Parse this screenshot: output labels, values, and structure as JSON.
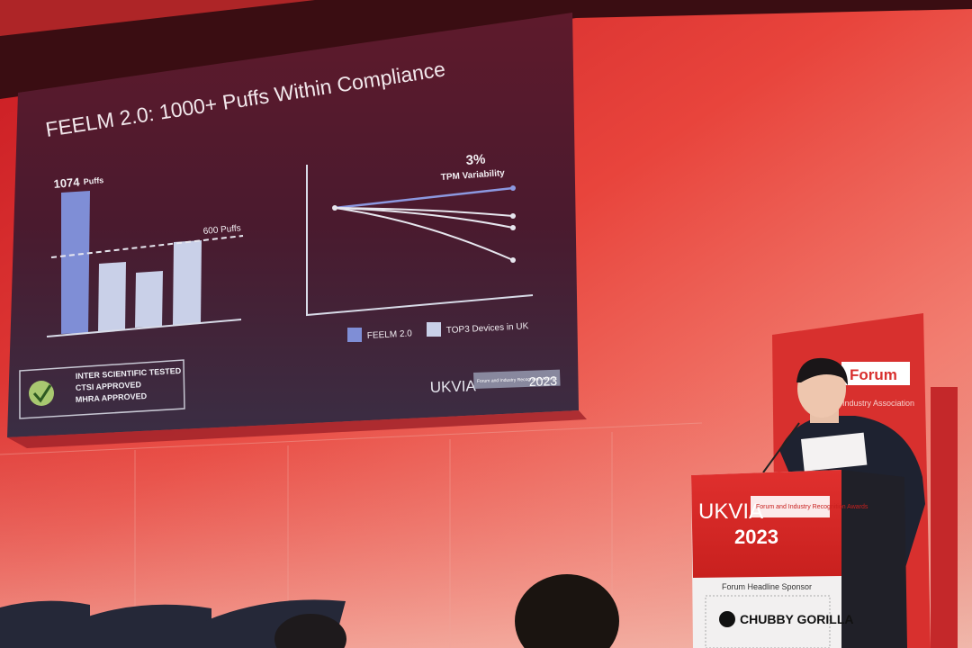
{
  "slide": {
    "title": "FEELM 2.0: 1000+ Puffs Within Compliance",
    "bar_label": "1074",
    "bar_label_unit": "Puffs",
    "threshold_label": "600 Puffs",
    "variability_value": "3%",
    "variability_label": "TPM Variability",
    "legend": [
      "FEELM 2.0",
      "TOP3 Devices in UK"
    ],
    "badges": [
      "INTER SCIENTIFIC TESTED",
      "CTSI APPROVED",
      "MHRA APPROVED"
    ],
    "logo": "UKVIA",
    "logo_caption": "Forum and Industry Recognition Awards",
    "logo_year": "2023"
  },
  "banner": {
    "title": "Forum",
    "subtitle": "Industry Association"
  },
  "podium": {
    "logo": "UKVIA",
    "caption": "Forum and Industry Recognition Awards",
    "year": "2023",
    "sponsor_heading": "Forum Headline Sponsor",
    "sponsor": "CHUBBY GORILLA"
  }
}
